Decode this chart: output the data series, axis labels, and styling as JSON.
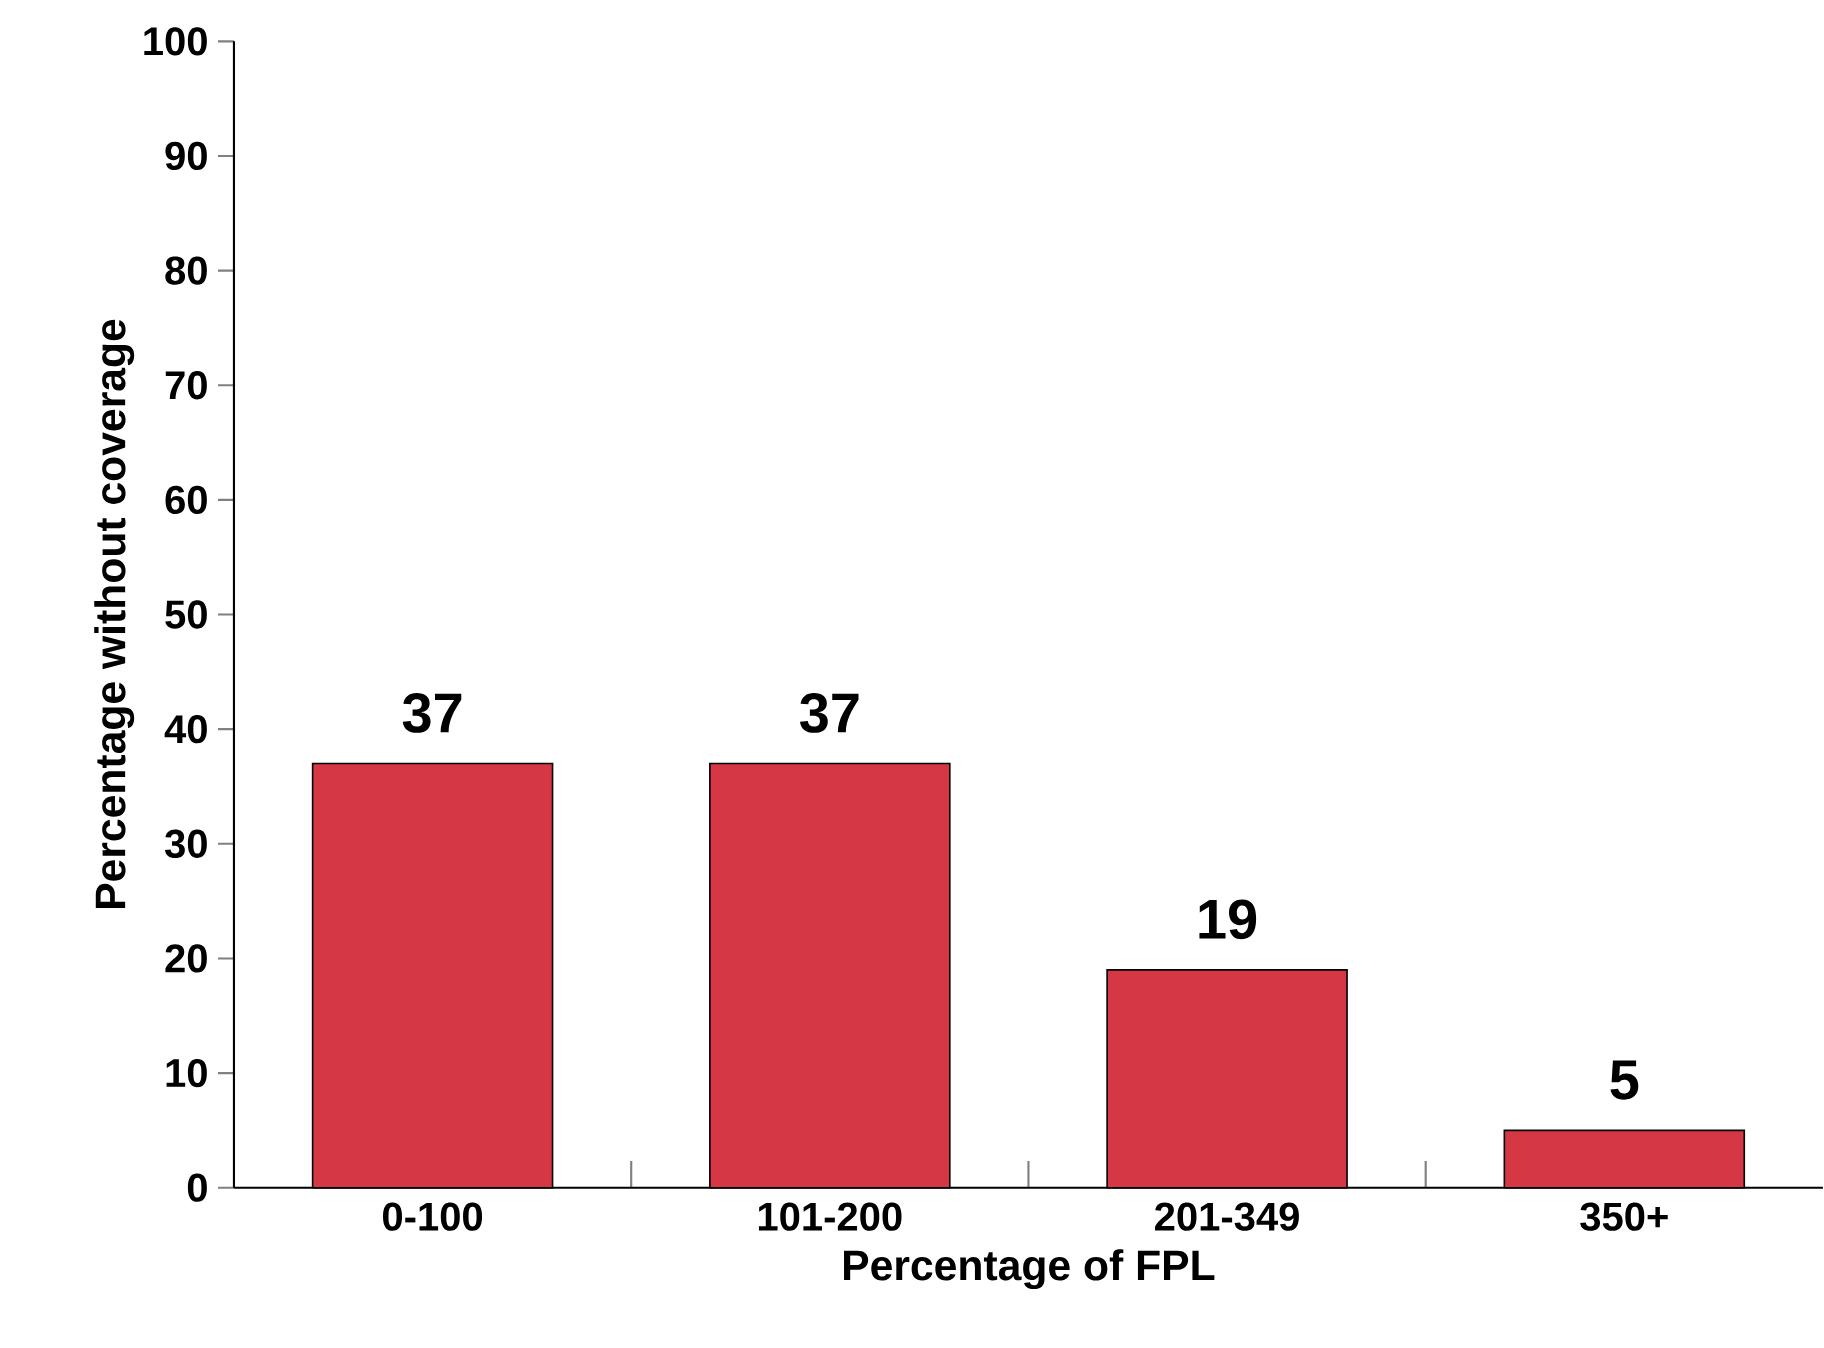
{
  "chart_data": {
    "type": "bar",
    "xlabel": "Percentage of FPL",
    "ylabel": "Percentage without coverage",
    "categories": [
      "0-100",
      "101-200",
      "201-349",
      "350+"
    ],
    "values": [
      37,
      37,
      19,
      5
    ],
    "color": "#d63745",
    "ylim": [
      0,
      100
    ],
    "yticks": [
      0,
      10,
      20,
      30,
      40,
      50,
      60,
      70,
      80,
      90,
      100
    ],
    "data_labels": true
  }
}
